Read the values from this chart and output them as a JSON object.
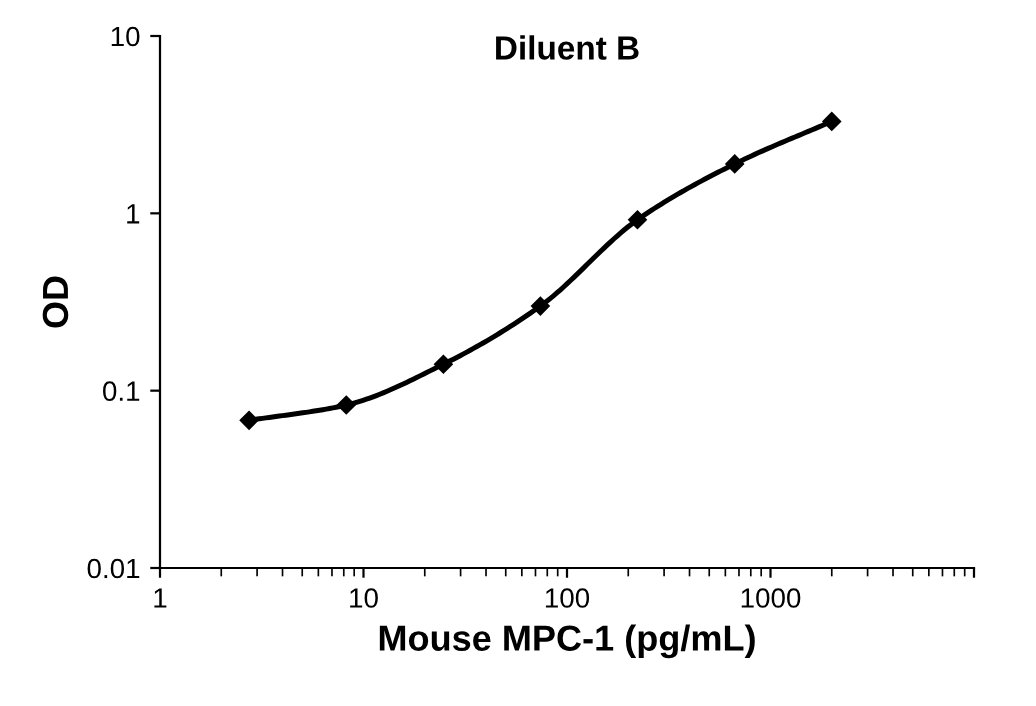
{
  "chart_data": {
    "type": "line",
    "title": "Diluent B",
    "xlabel": "Mouse MPC-1 (pg/mL)",
    "ylabel": "OD",
    "log": "xy",
    "grid": false,
    "marker": "diamond",
    "line_style": "solid",
    "x": [
      2.74,
      8.23,
      24.7,
      74,
      222,
      667,
      2000
    ],
    "series": [
      {
        "color": "#000000",
        "values": [
          0.068,
          0.083,
          0.141,
          0.3,
          0.92,
          1.9,
          3.3
        ]
      }
    ],
    "xlim": [
      1,
      10000
    ],
    "ylim": [
      0.01,
      10
    ],
    "xticks": [
      1,
      10,
      100,
      1000,
      {
        "value": 10000,
        "label": null
      }
    ],
    "yticks": [
      0.01,
      0.1,
      1,
      10
    ]
  }
}
